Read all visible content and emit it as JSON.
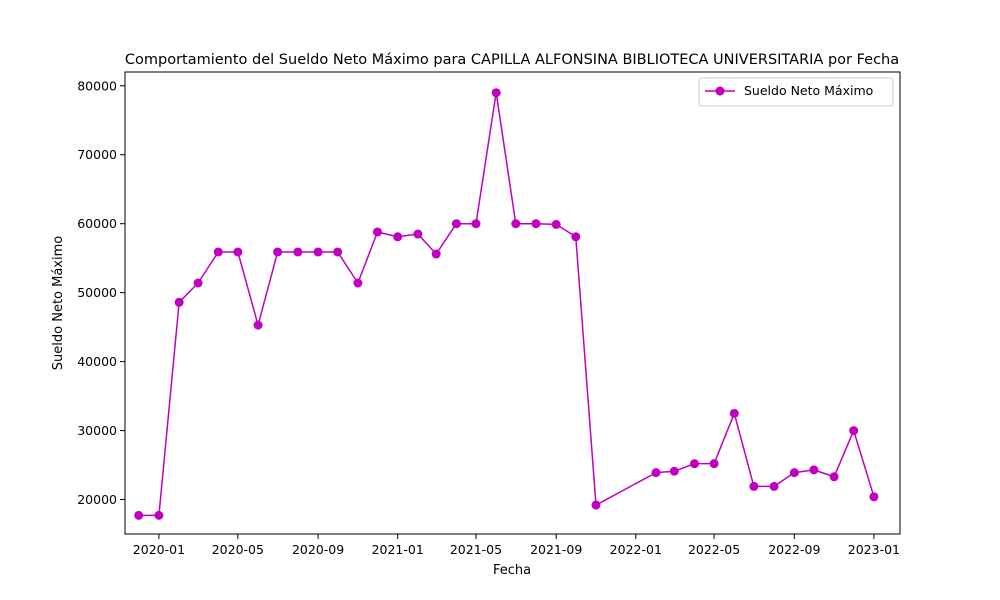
{
  "chart_data": {
    "type": "line",
    "title": "Comportamiento del Sueldo Neto Máximo para CAPILLA ALFONSINA BIBLIOTECA UNIVERSITARIA por Fecha",
    "xlabel": "Fecha",
    "ylabel": "Sueldo Neto Máximo",
    "xlim": [
      "2019-11-10",
      "2023-02-10"
    ],
    "ylim": [
      15000,
      82000
    ],
    "x_ticks": [
      "2020-01",
      "2020-05",
      "2020-09",
      "2021-01",
      "2021-05",
      "2021-09",
      "2022-01",
      "2022-05",
      "2022-09",
      "2023-01"
    ],
    "y_ticks": [
      20000,
      30000,
      40000,
      50000,
      60000,
      70000,
      80000
    ],
    "grid": false,
    "legend_position": "top-right",
    "series": [
      {
        "name": "Sueldo Neto Máximo",
        "color": "#bf00bf",
        "marker": "circle",
        "points": [
          {
            "x": "2019-12-01",
            "y": 17700
          },
          {
            "x": "2020-01-01",
            "y": 17700
          },
          {
            "x": "2020-02-01",
            "y": 48600
          },
          {
            "x": "2020-03-01",
            "y": 51400
          },
          {
            "x": "2020-04-01",
            "y": 55900
          },
          {
            "x": "2020-05-01",
            "y": 55900
          },
          {
            "x": "2020-06-01",
            "y": 45300
          },
          {
            "x": "2020-07-01",
            "y": 55900
          },
          {
            "x": "2020-08-01",
            "y": 55900
          },
          {
            "x": "2020-09-01",
            "y": 55900
          },
          {
            "x": "2020-10-01",
            "y": 55900
          },
          {
            "x": "2020-11-01",
            "y": 51400
          },
          {
            "x": "2020-12-01",
            "y": 58800
          },
          {
            "x": "2021-01-01",
            "y": 58100
          },
          {
            "x": "2021-02-01",
            "y": 58500
          },
          {
            "x": "2021-03-01",
            "y": 55600
          },
          {
            "x": "2021-04-01",
            "y": 60000
          },
          {
            "x": "2021-05-01",
            "y": 60000
          },
          {
            "x": "2021-06-01",
            "y": 79000
          },
          {
            "x": "2021-07-01",
            "y": 60000
          },
          {
            "x": "2021-08-01",
            "y": 60000
          },
          {
            "x": "2021-09-01",
            "y": 59900
          },
          {
            "x": "2021-10-01",
            "y": 58100
          },
          {
            "x": "2021-11-01",
            "y": 19200
          },
          {
            "x": "2022-02-01",
            "y": 23900
          },
          {
            "x": "2022-03-01",
            "y": 24100
          },
          {
            "x": "2022-04-01",
            "y": 25200
          },
          {
            "x": "2022-05-01",
            "y": 25200
          },
          {
            "x": "2022-06-01",
            "y": 32500
          },
          {
            "x": "2022-07-01",
            "y": 21900
          },
          {
            "x": "2022-08-01",
            "y": 21900
          },
          {
            "x": "2022-09-01",
            "y": 23900
          },
          {
            "x": "2022-10-01",
            "y": 24300
          },
          {
            "x": "2022-11-01",
            "y": 23300
          },
          {
            "x": "2022-12-01",
            "y": 30000
          },
          {
            "x": "2023-01-01",
            "y": 20400
          }
        ]
      }
    ]
  }
}
